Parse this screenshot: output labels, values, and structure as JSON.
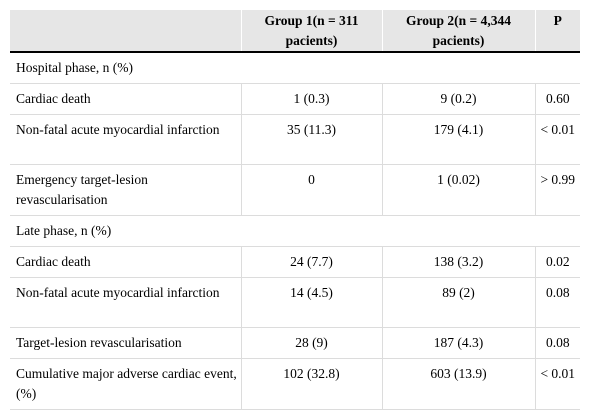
{
  "table": {
    "headers": [
      "",
      "Group 1(n = 311 pacients)",
      "Group 2(n = 4,344 pacients)",
      "P"
    ],
    "sections": [
      {
        "title": "Hospital phase, n (%)",
        "rows": [
          {
            "label": " Cardiac death",
            "g1": "1 (0.3)",
            "g2": "9 (0.2)",
            "p": "0.60"
          },
          {
            "label": " Non-fatal acute myocardial infarction",
            "g1": "35 (11.3)",
            "g2": "179 (4.1)",
            "p": "< 0.01"
          },
          {
            "label": " Emergency target-lesion revascularisation",
            "g1": "0",
            "g2": "1 (0.02)",
            "p": "> 0.99"
          }
        ]
      },
      {
        "title": "Late phase, n (%)",
        "rows": [
          {
            "label": " Cardiac death",
            "g1": "24 (7.7)",
            "g2": "138 (3.2)",
            "p": "0.02"
          },
          {
            "label": " Non-fatal acute myocardial infarction",
            "g1": "14 (4.5)",
            "g2": "89 (2)",
            "p": "0.08"
          },
          {
            "label": " Target-lesion revascularisation",
            "g1": "28 (9)",
            "g2": "187 (4.3)",
            "p": "0.08"
          },
          {
            "label": "Cumulative major adverse cardiac event, (%)",
            "g1": "102 (32.8)",
            "g2": "603 (13.9)",
            "p": "< 0.01"
          }
        ]
      }
    ]
  }
}
